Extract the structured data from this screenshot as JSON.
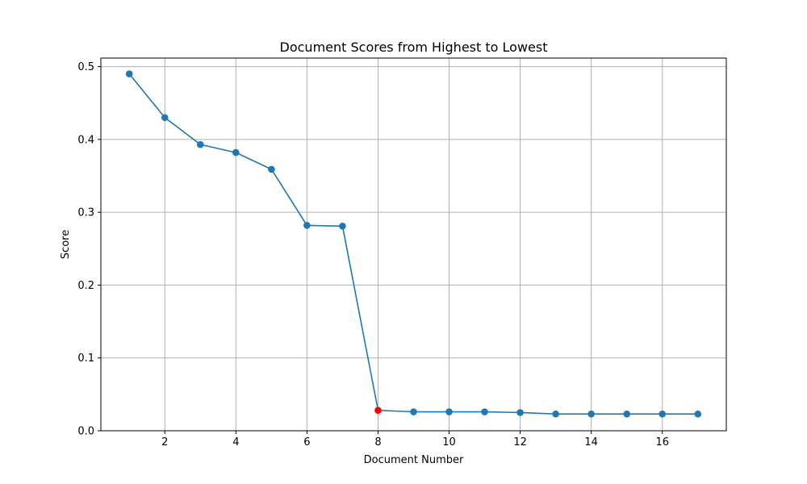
{
  "chart_data": {
    "type": "line",
    "title": "Document Scores from Highest to Lowest",
    "xlabel": "Document Number",
    "ylabel": "Score",
    "x": [
      1,
      2,
      3,
      4,
      5,
      6,
      7,
      8,
      9,
      10,
      11,
      12,
      13,
      14,
      15,
      16,
      17
    ],
    "series": [
      {
        "values": [
          0.49,
          0.43,
          0.393,
          0.382,
          0.359,
          0.282,
          0.281,
          0.028,
          0.026,
          0.026,
          0.026,
          0.025,
          0.023,
          0.023,
          0.023,
          0.023,
          0.023
        ]
      }
    ],
    "highlight": {
      "x": 8,
      "y": 0.028,
      "color": "#ff0000"
    },
    "xlim": [
      0.2,
      17.8
    ],
    "ylim": [
      0.0,
      0.5117
    ],
    "xticks": [
      2,
      4,
      6,
      8,
      10,
      12,
      14,
      16
    ],
    "yticks": [
      0.0,
      0.1,
      0.2,
      0.3,
      0.4,
      0.5
    ],
    "ytick_labels": [
      "0.0",
      "0.1",
      "0.2",
      "0.3",
      "0.4",
      "0.5"
    ],
    "grid": true,
    "line_color": "#1f77b4",
    "marker": "circle"
  }
}
